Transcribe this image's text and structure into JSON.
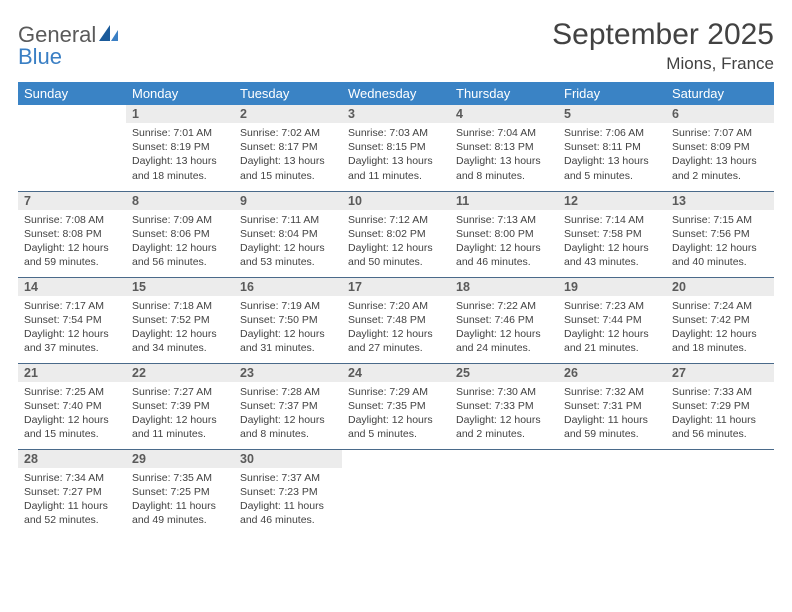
{
  "brand": {
    "general": "General",
    "blue": "Blue"
  },
  "title": "September 2025",
  "location": "Mions, France",
  "colors": {
    "header_bg": "#3a83c5",
    "header_text": "#ffffff",
    "daynum_bg": "#ececec",
    "row_border": "#4a6a8a",
    "body_text": "#424242",
    "logo_blue": "#3a7fc4",
    "logo_gray": "#5a5a5a",
    "page_bg": "#ffffff"
  },
  "fonts": {
    "title_size_pt": 22,
    "location_size_pt": 13,
    "weekday_size_pt": 10,
    "daynum_size_pt": 9.5,
    "info_size_pt": 8
  },
  "weekdays": [
    "Sunday",
    "Monday",
    "Tuesday",
    "Wednesday",
    "Thursday",
    "Friday",
    "Saturday"
  ],
  "weeks": [
    [
      {
        "n": "",
        "empty": true
      },
      {
        "n": "1",
        "sr": "7:01 AM",
        "ss": "8:19 PM",
        "dl": "13 hours and 18 minutes."
      },
      {
        "n": "2",
        "sr": "7:02 AM",
        "ss": "8:17 PM",
        "dl": "13 hours and 15 minutes."
      },
      {
        "n": "3",
        "sr": "7:03 AM",
        "ss": "8:15 PM",
        "dl": "13 hours and 11 minutes."
      },
      {
        "n": "4",
        "sr": "7:04 AM",
        "ss": "8:13 PM",
        "dl": "13 hours and 8 minutes."
      },
      {
        "n": "5",
        "sr": "7:06 AM",
        "ss": "8:11 PM",
        "dl": "13 hours and 5 minutes."
      },
      {
        "n": "6",
        "sr": "7:07 AM",
        "ss": "8:09 PM",
        "dl": "13 hours and 2 minutes."
      }
    ],
    [
      {
        "n": "7",
        "sr": "7:08 AM",
        "ss": "8:08 PM",
        "dl": "12 hours and 59 minutes."
      },
      {
        "n": "8",
        "sr": "7:09 AM",
        "ss": "8:06 PM",
        "dl": "12 hours and 56 minutes."
      },
      {
        "n": "9",
        "sr": "7:11 AM",
        "ss": "8:04 PM",
        "dl": "12 hours and 53 minutes."
      },
      {
        "n": "10",
        "sr": "7:12 AM",
        "ss": "8:02 PM",
        "dl": "12 hours and 50 minutes."
      },
      {
        "n": "11",
        "sr": "7:13 AM",
        "ss": "8:00 PM",
        "dl": "12 hours and 46 minutes."
      },
      {
        "n": "12",
        "sr": "7:14 AM",
        "ss": "7:58 PM",
        "dl": "12 hours and 43 minutes."
      },
      {
        "n": "13",
        "sr": "7:15 AM",
        "ss": "7:56 PM",
        "dl": "12 hours and 40 minutes."
      }
    ],
    [
      {
        "n": "14",
        "sr": "7:17 AM",
        "ss": "7:54 PM",
        "dl": "12 hours and 37 minutes."
      },
      {
        "n": "15",
        "sr": "7:18 AM",
        "ss": "7:52 PM",
        "dl": "12 hours and 34 minutes."
      },
      {
        "n": "16",
        "sr": "7:19 AM",
        "ss": "7:50 PM",
        "dl": "12 hours and 31 minutes."
      },
      {
        "n": "17",
        "sr": "7:20 AM",
        "ss": "7:48 PM",
        "dl": "12 hours and 27 minutes."
      },
      {
        "n": "18",
        "sr": "7:22 AM",
        "ss": "7:46 PM",
        "dl": "12 hours and 24 minutes."
      },
      {
        "n": "19",
        "sr": "7:23 AM",
        "ss": "7:44 PM",
        "dl": "12 hours and 21 minutes."
      },
      {
        "n": "20",
        "sr": "7:24 AM",
        "ss": "7:42 PM",
        "dl": "12 hours and 18 minutes."
      }
    ],
    [
      {
        "n": "21",
        "sr": "7:25 AM",
        "ss": "7:40 PM",
        "dl": "12 hours and 15 minutes."
      },
      {
        "n": "22",
        "sr": "7:27 AM",
        "ss": "7:39 PM",
        "dl": "12 hours and 11 minutes."
      },
      {
        "n": "23",
        "sr": "7:28 AM",
        "ss": "7:37 PM",
        "dl": "12 hours and 8 minutes."
      },
      {
        "n": "24",
        "sr": "7:29 AM",
        "ss": "7:35 PM",
        "dl": "12 hours and 5 minutes."
      },
      {
        "n": "25",
        "sr": "7:30 AM",
        "ss": "7:33 PM",
        "dl": "12 hours and 2 minutes."
      },
      {
        "n": "26",
        "sr": "7:32 AM",
        "ss": "7:31 PM",
        "dl": "11 hours and 59 minutes."
      },
      {
        "n": "27",
        "sr": "7:33 AM",
        "ss": "7:29 PM",
        "dl": "11 hours and 56 minutes."
      }
    ],
    [
      {
        "n": "28",
        "sr": "7:34 AM",
        "ss": "7:27 PM",
        "dl": "11 hours and 52 minutes."
      },
      {
        "n": "29",
        "sr": "7:35 AM",
        "ss": "7:25 PM",
        "dl": "11 hours and 49 minutes."
      },
      {
        "n": "30",
        "sr": "7:37 AM",
        "ss": "7:23 PM",
        "dl": "11 hours and 46 minutes."
      },
      {
        "n": "",
        "empty": true
      },
      {
        "n": "",
        "empty": true
      },
      {
        "n": "",
        "empty": true
      },
      {
        "n": "",
        "empty": true
      }
    ]
  ],
  "labels": {
    "sunrise": "Sunrise:",
    "sunset": "Sunset:",
    "daylight": "Daylight:"
  }
}
